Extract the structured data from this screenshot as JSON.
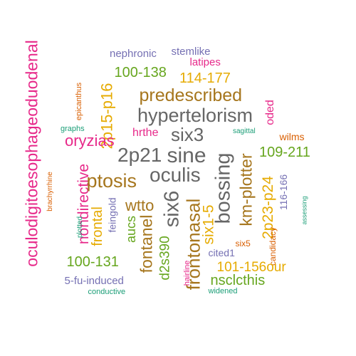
{
  "colors": {
    "pink": "#e7298a",
    "purple": "#7570b3",
    "green": "#66a61e",
    "gold": "#e6ab02",
    "brown": "#a6761d",
    "orange": "#d95f02",
    "teal": "#1b9e77",
    "gray": "#666666"
  },
  "words": [
    {
      "text": "oculodigitoesophageoduodenal",
      "color": "pink",
      "vertical": true
    },
    {
      "text": "nephronic",
      "color": "purple",
      "vertical": false
    },
    {
      "text": "stemlike",
      "color": "purple",
      "vertical": false
    },
    {
      "text": "latipes",
      "color": "pink",
      "vertical": false
    },
    {
      "text": "100-138",
      "color": "green",
      "vertical": false
    },
    {
      "text": "114-177",
      "color": "gold",
      "vertical": false
    },
    {
      "text": "epicanthus",
      "color": "orange",
      "vertical": true
    },
    {
      "text": "predescribed",
      "color": "brown",
      "vertical": false
    },
    {
      "text": "2p15-p16",
      "color": "gold",
      "vertical": true
    },
    {
      "text": "hypertelorism",
      "color": "gray",
      "vertical": false
    },
    {
      "text": "graphs",
      "color": "teal",
      "vertical": false
    },
    {
      "text": "oded",
      "color": "pink",
      "vertical": true
    },
    {
      "text": "hrthe",
      "color": "pink",
      "vertical": false
    },
    {
      "text": "six3",
      "color": "gray",
      "vertical": false
    },
    {
      "text": "sagittal",
      "color": "teal",
      "vertical": false
    },
    {
      "text": "wilms",
      "color": "orange",
      "vertical": false
    },
    {
      "text": "oryzias",
      "color": "pink",
      "vertical": false
    },
    {
      "text": "2p21",
      "color": "gray",
      "vertical": false
    },
    {
      "text": "sine",
      "color": "gray",
      "vertical": false
    },
    {
      "text": "109-211",
      "color": "green",
      "vertical": false
    },
    {
      "text": "nondirective",
      "color": "pink",
      "vertical": true
    },
    {
      "text": "brachyrrhine",
      "color": "orange",
      "vertical": true
    },
    {
      "text": "ptosis",
      "color": "brown",
      "vertical": false
    },
    {
      "text": "oculis",
      "color": "gray",
      "vertical": false
    },
    {
      "text": "bossing",
      "color": "gray",
      "vertical": true
    },
    {
      "text": "km-plotter",
      "color": "brown",
      "vertical": true
    },
    {
      "text": "2p23-p24",
      "color": "gold",
      "vertical": true
    },
    {
      "text": "116-166",
      "color": "purple",
      "vertical": true
    },
    {
      "text": "assessing",
      "color": "teal",
      "vertical": true
    },
    {
      "text": "six6",
      "color": "gray",
      "vertical": true
    },
    {
      "text": "wtto",
      "color": "brown",
      "vertical": false
    },
    {
      "text": "frontal",
      "color": "gold",
      "vertical": true
    },
    {
      "text": "feingold",
      "color": "purple",
      "vertical": true
    },
    {
      "text": "plotted",
      "color": "teal",
      "vertical": true
    },
    {
      "text": "aucs",
      "color": "green",
      "vertical": true
    },
    {
      "text": "fontanel",
      "color": "brown",
      "vertical": true
    },
    {
      "text": "frontonasal",
      "color": "brown",
      "vertical": true
    },
    {
      "text": "six1-5",
      "color": "gold",
      "vertical": true
    },
    {
      "text": "d2s390",
      "color": "green",
      "vertical": true
    },
    {
      "text": "cited1",
      "color": "purple",
      "vertical": false
    },
    {
      "text": "six5",
      "color": "orange",
      "vertical": false
    },
    {
      "text": "candidacy",
      "color": "orange",
      "vertical": true
    },
    {
      "text": "100-131",
      "color": "green",
      "vertical": false
    },
    {
      "text": "hairline",
      "color": "pink",
      "vertical": true
    },
    {
      "text": "101-156our",
      "color": "gold",
      "vertical": false
    },
    {
      "text": "5-fu-induced",
      "color": "purple",
      "vertical": false
    },
    {
      "text": "nsclcthis",
      "color": "green",
      "vertical": false
    },
    {
      "text": "conductive",
      "color": "teal",
      "vertical": false
    },
    {
      "text": "widened",
      "color": "teal",
      "vertical": false
    }
  ]
}
